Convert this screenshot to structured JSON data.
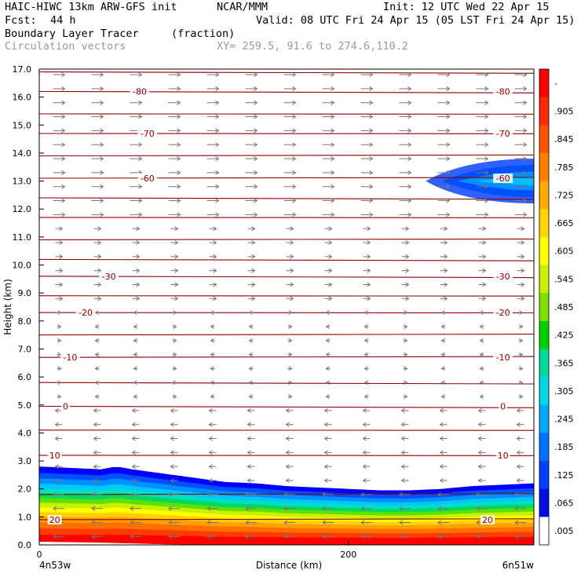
{
  "header": {
    "model": "HAIC-HIWC 13km ARW-GFS init",
    "org": "NCAR/MMM",
    "init": "Init: 12 UTC Wed 22 Apr 15",
    "fcst_label": "Fcst:",
    "fcst_value": "44 h",
    "valid": "Valid: 08 UTC Fri 24 Apr 15 (05 LST Fri 24 Apr 15)",
    "field": "Boundary Layer Tracer",
    "units": "(fraction)",
    "vectors": "Circulation vectors",
    "xy": "XY= 259.5, 91.6 to 274.6,110.2"
  },
  "chart_data": {
    "type": "heatmap",
    "xlabel": "Distance (km)",
    "ylabel": "Height (km)",
    "xlim": [
      0,
      320
    ],
    "ylim": [
      0,
      17
    ],
    "x_ticks": [
      "0",
      "200"
    ],
    "y_ticks": [
      "0.0",
      "1.0",
      "2.0",
      "3.0",
      "4.0",
      "5.0",
      "6.0",
      "7.0",
      "8.0",
      "9.0",
      "10.0",
      "11.0",
      "12.0",
      "13.0",
      "14.0",
      "15.0",
      "16.0",
      "17.0"
    ],
    "x_endpoints": {
      "left": "4n53w",
      "right": "6n51w"
    },
    "colorbar": {
      "labels": [
        "-",
        ".905",
        ".845",
        ".785",
        ".725",
        ".665",
        ".605",
        ".545",
        ".485",
        ".425",
        ".365",
        ".305",
        ".245",
        ".185",
        ".125",
        ".065",
        ".005"
      ],
      "colors": [
        "#ff0000",
        "#ff2a00",
        "#ff5500",
        "#ff8000",
        "#ffaa00",
        "#ffd400",
        "#ffff00",
        "#c8f000",
        "#80e000",
        "#00d000",
        "#00d8a0",
        "#00d8e8",
        "#00a8ff",
        "#0070ff",
        "#0040ff",
        "#0010e0",
        "#ffffff"
      ]
    },
    "tracer": {
      "surface_x": [
        0,
        20,
        40,
        50,
        60,
        80,
        100,
        120,
        140,
        160,
        180,
        200,
        220,
        240,
        260,
        280,
        300,
        320
      ],
      "top_height": [
        2.8,
        2.75,
        2.7,
        2.8,
        2.7,
        2.55,
        2.4,
        2.25,
        2.2,
        2.1,
        2.05,
        2.0,
        1.95,
        1.95,
        2.0,
        2.1,
        2.15,
        2.2
      ],
      "upper_plume": {
        "x_start": 250,
        "x_end": 320,
        "center_height": 13.0,
        "half_depth": 0.8
      }
    },
    "temperature_contours": [
      {
        "value": "-80",
        "height": 16.2,
        "labels_x": [
          65,
          300
        ]
      },
      {
        "value": "-70",
        "height": 14.7,
        "labels_x": [
          70,
          300
        ]
      },
      {
        "value": "-60",
        "height": 13.1,
        "labels_x": [
          70,
          300
        ]
      },
      {
        "value": "-30",
        "height": 9.6,
        "labels_x": [
          45,
          300
        ]
      },
      {
        "value": "-20",
        "height": 8.3,
        "labels_x": [
          30,
          300
        ]
      },
      {
        "value": "-10",
        "height": 6.7,
        "labels_x": [
          20,
          300
        ]
      },
      {
        "value": "0",
        "height": 4.95,
        "labels_x": [
          17,
          300
        ]
      },
      {
        "value": "10",
        "height": 3.2,
        "labels_x": [
          10,
          300
        ]
      },
      {
        "value": "20",
        "height": 0.9,
        "labels_x": [
          10,
          290
        ]
      }
    ],
    "other_contour_heights": [
      16.9,
      15.4,
      13.9,
      12.4,
      11.7,
      10.9,
      10.2,
      8.9,
      7.5,
      5.8,
      4.1,
      1.8
    ]
  }
}
